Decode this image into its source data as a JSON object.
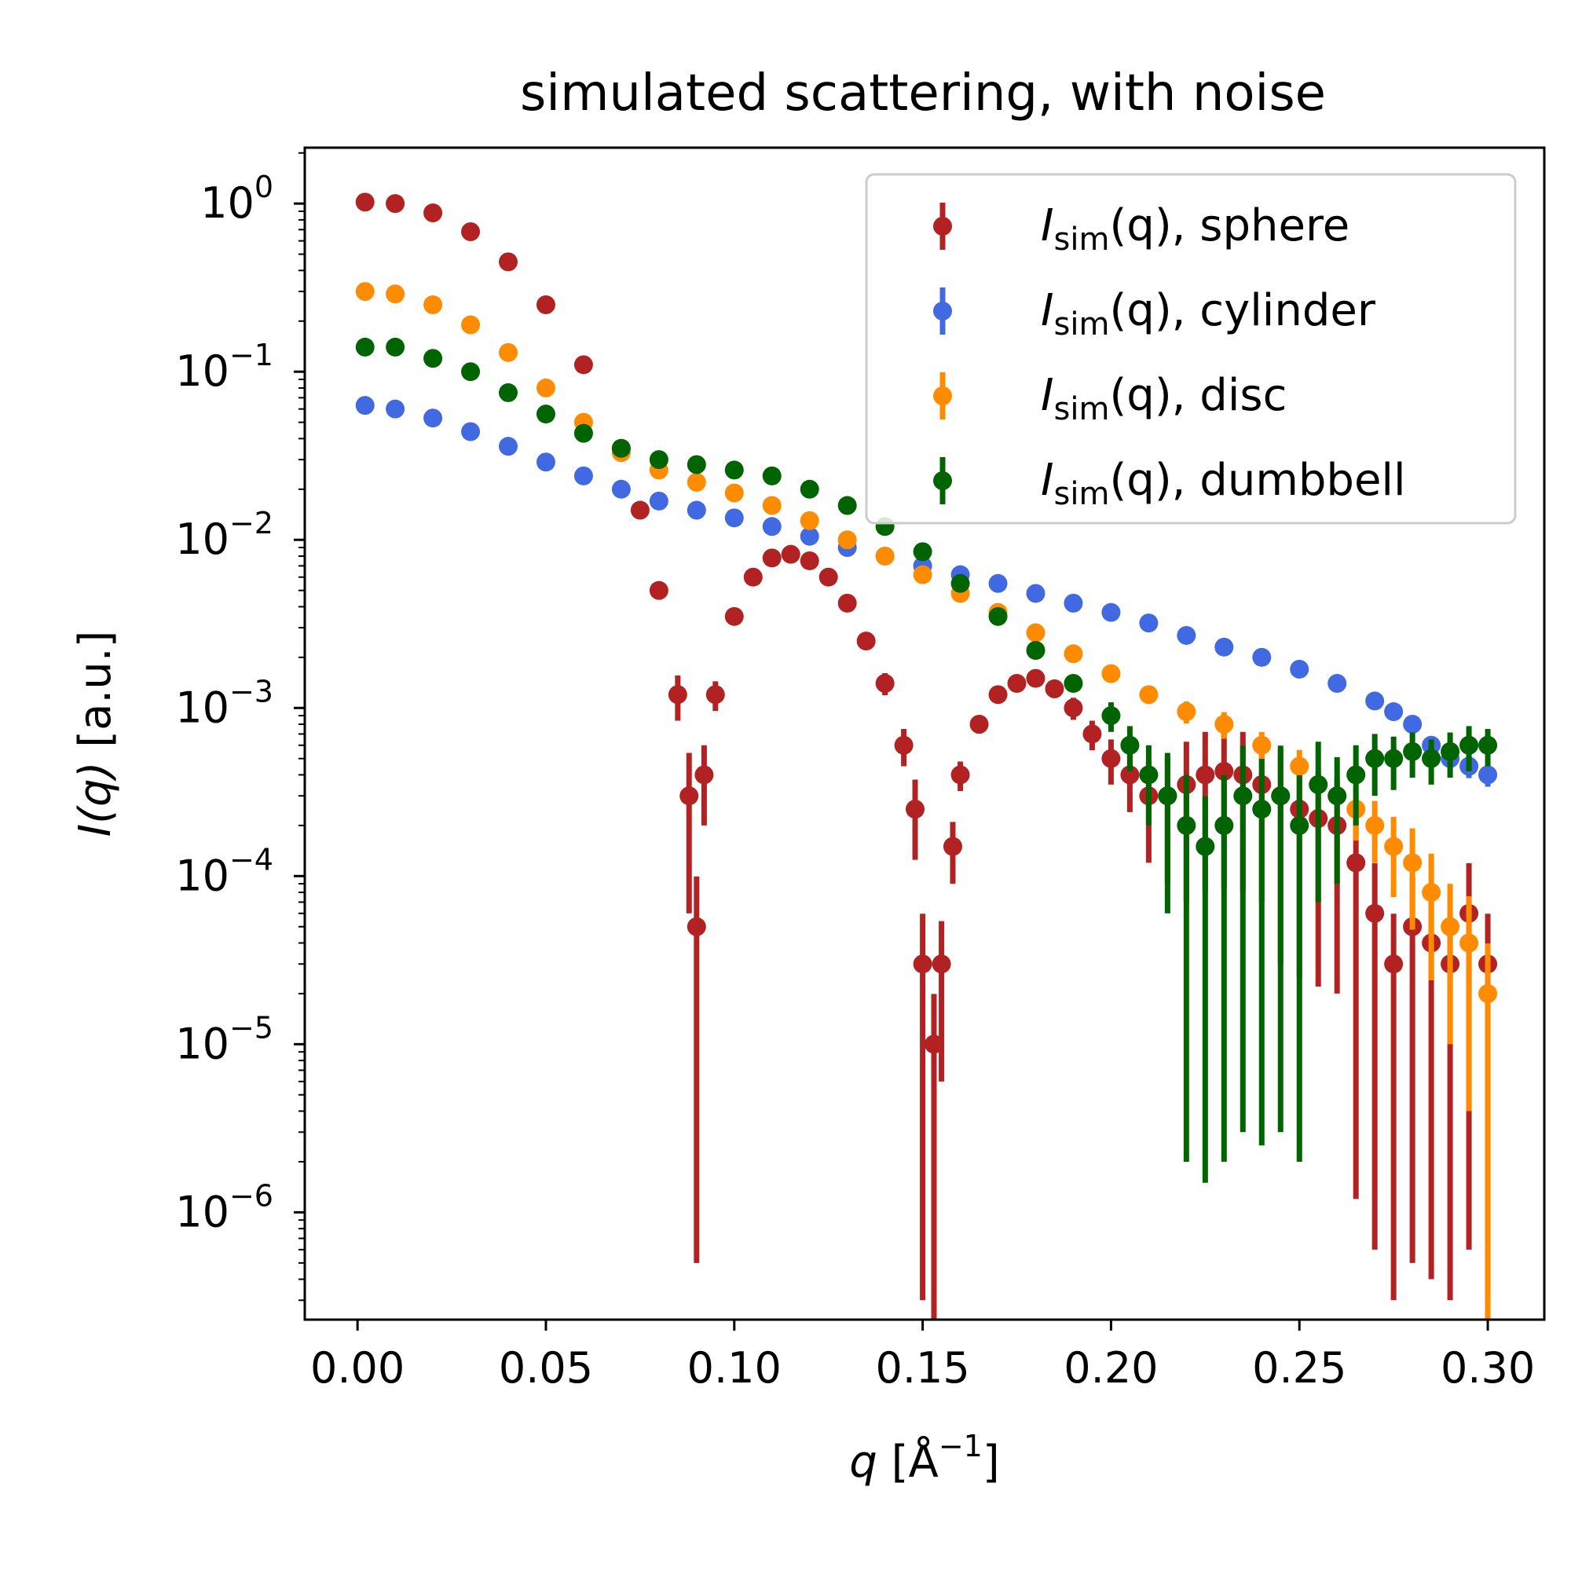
{
  "chart_data": {
    "type": "scatter",
    "title": "simulated scattering, with noise",
    "xlabel": {
      "main": "q",
      "bracket_open": " [Å",
      "exponent": "−1",
      "bracket_close": "]"
    },
    "ylabel": {
      "main": "I(q)",
      "rest": " [a.u.]"
    },
    "x_ticks": [
      "0.00",
      "0.05",
      "0.10",
      "0.15",
      "0.20",
      "0.25",
      "0.30"
    ],
    "x_tick_values": [
      0.0,
      0.05,
      0.1,
      0.15,
      0.2,
      0.25,
      0.3
    ],
    "y_ticks": [
      {
        "base": "10",
        "exp": "0"
      },
      {
        "base": "10",
        "exp": "−1"
      },
      {
        "base": "10",
        "exp": "−2"
      },
      {
        "base": "10",
        "exp": "−3"
      },
      {
        "base": "10",
        "exp": "−4"
      },
      {
        "base": "10",
        "exp": "−5"
      },
      {
        "base": "10",
        "exp": "−6"
      }
    ],
    "y_tick_exponents": [
      0,
      -1,
      -2,
      -3,
      -4,
      -5,
      -6
    ],
    "xlim": [
      -0.014,
      0.315
    ],
    "ylim": [
      2.3e-07,
      2.15
    ],
    "yscale": "log",
    "grid": false,
    "legend_position": "top-right",
    "series": [
      {
        "name": "sphere",
        "legend": {
          "sym": "I",
          "sub": "sim",
          "rest": "(q), sphere"
        },
        "color": "#b22222",
        "x": [
          0.002,
          0.01,
          0.02,
          0.03,
          0.04,
          0.05,
          0.06,
          0.07,
          0.075,
          0.08,
          0.085,
          0.088,
          0.09,
          0.092,
          0.095,
          0.1,
          0.105,
          0.11,
          0.115,
          0.12,
          0.125,
          0.13,
          0.135,
          0.14,
          0.145,
          0.148,
          0.15,
          0.153,
          0.155,
          0.158,
          0.16,
          0.165,
          0.17,
          0.175,
          0.18,
          0.185,
          0.19,
          0.195,
          0.2,
          0.205,
          0.21,
          0.215,
          0.22,
          0.225,
          0.23,
          0.235,
          0.24,
          0.245,
          0.25,
          0.255,
          0.26,
          0.265,
          0.27,
          0.275,
          0.28,
          0.285,
          0.29,
          0.295,
          0.3
        ],
        "y": [
          1.02,
          1.0,
          0.88,
          0.68,
          0.45,
          0.25,
          0.11,
          0.035,
          0.015,
          0.005,
          0.0012,
          0.0003,
          5e-05,
          0.0004,
          0.0012,
          0.0035,
          0.006,
          0.0078,
          0.0082,
          0.0075,
          0.006,
          0.0042,
          0.0025,
          0.0014,
          0.0006,
          0.00025,
          3e-05,
          1e-05,
          3e-05,
          0.00015,
          0.0004,
          0.0008,
          0.0012,
          0.0014,
          0.0015,
          0.0013,
          0.001,
          0.0007,
          0.0005,
          0.0004,
          0.0003,
          0.0003,
          0.00035,
          0.0004,
          0.00042,
          0.0004,
          0.00035,
          0.0003,
          0.00025,
          0.00022,
          0.0002,
          0.00012,
          6e-05,
          3e-05,
          5e-05,
          4e-05,
          3e-05,
          6e-05,
          3e-05
        ],
        "yerr_frac": [
          0.02,
          0.02,
          0.02,
          0.02,
          0.02,
          0.02,
          0.03,
          0.05,
          0.08,
          0.12,
          0.3,
          0.8,
          0.99,
          0.5,
          0.2,
          0.08,
          0.05,
          0.05,
          0.05,
          0.05,
          0.06,
          0.08,
          0.1,
          0.15,
          0.25,
          0.5,
          0.99,
          0.99,
          0.8,
          0.4,
          0.2,
          0.12,
          0.1,
          0.1,
          0.1,
          0.12,
          0.15,
          0.2,
          0.3,
          0.4,
          0.6,
          0.7,
          0.8,
          0.8,
          0.8,
          0.8,
          0.8,
          0.9,
          0.9,
          0.9,
          0.9,
          0.99,
          0.99,
          0.99,
          0.99,
          0.99,
          0.99,
          0.99,
          0.99
        ]
      },
      {
        "name": "cylinder",
        "legend": {
          "sym": "I",
          "sub": "sim",
          "rest": "(q), cylinder"
        },
        "color": "#4169e1",
        "x": [
          0.002,
          0.01,
          0.02,
          0.03,
          0.04,
          0.05,
          0.06,
          0.07,
          0.08,
          0.09,
          0.1,
          0.11,
          0.12,
          0.13,
          0.14,
          0.15,
          0.16,
          0.17,
          0.18,
          0.19,
          0.2,
          0.21,
          0.22,
          0.23,
          0.24,
          0.25,
          0.26,
          0.27,
          0.275,
          0.28,
          0.285,
          0.29,
          0.295,
          0.3
        ],
        "y": [
          0.063,
          0.06,
          0.053,
          0.044,
          0.036,
          0.029,
          0.024,
          0.02,
          0.017,
          0.015,
          0.0135,
          0.012,
          0.0105,
          0.009,
          0.008,
          0.007,
          0.0062,
          0.0055,
          0.0048,
          0.0042,
          0.0037,
          0.0032,
          0.0027,
          0.0023,
          0.002,
          0.0017,
          0.0014,
          0.0011,
          0.00095,
          0.0008,
          0.0006,
          0.0005,
          0.00045,
          0.0004
        ],
        "yerr_frac": [
          0.03,
          0.03,
          0.03,
          0.03,
          0.03,
          0.03,
          0.03,
          0.03,
          0.03,
          0.03,
          0.03,
          0.03,
          0.03,
          0.03,
          0.03,
          0.03,
          0.03,
          0.04,
          0.04,
          0.04,
          0.04,
          0.05,
          0.05,
          0.05,
          0.06,
          0.06,
          0.07,
          0.08,
          0.1,
          0.1,
          0.12,
          0.15,
          0.15,
          0.15
        ]
      },
      {
        "name": "disc",
        "legend": {
          "sym": "I",
          "sub": "sim",
          "rest": "(q), disc"
        },
        "color": "#ff8c00",
        "x": [
          0.002,
          0.01,
          0.02,
          0.03,
          0.04,
          0.05,
          0.06,
          0.07,
          0.08,
          0.09,
          0.1,
          0.11,
          0.12,
          0.13,
          0.14,
          0.15,
          0.16,
          0.17,
          0.18,
          0.19,
          0.2,
          0.21,
          0.22,
          0.23,
          0.24,
          0.25,
          0.26,
          0.265,
          0.27,
          0.275,
          0.28,
          0.285,
          0.29,
          0.295,
          0.3
        ],
        "y": [
          0.3,
          0.29,
          0.25,
          0.19,
          0.13,
          0.08,
          0.05,
          0.033,
          0.026,
          0.022,
          0.019,
          0.016,
          0.013,
          0.01,
          0.008,
          0.0062,
          0.0048,
          0.0037,
          0.0028,
          0.0021,
          0.0016,
          0.0012,
          0.00095,
          0.0008,
          0.0006,
          0.00045,
          0.0003,
          0.00025,
          0.0002,
          0.00015,
          0.00012,
          8e-05,
          5e-05,
          4e-05,
          2e-05
        ],
        "yerr_frac": [
          0.02,
          0.02,
          0.02,
          0.02,
          0.02,
          0.02,
          0.02,
          0.03,
          0.03,
          0.03,
          0.03,
          0.03,
          0.03,
          0.04,
          0.04,
          0.05,
          0.05,
          0.06,
          0.07,
          0.08,
          0.1,
          0.12,
          0.15,
          0.18,
          0.2,
          0.25,
          0.3,
          0.35,
          0.4,
          0.5,
          0.6,
          0.7,
          0.8,
          0.9,
          0.99
        ]
      },
      {
        "name": "dumbbell",
        "legend": {
          "sym": "I",
          "sub": "sim",
          "rest": "(q), dumbbell"
        },
        "color": "#006400",
        "x": [
          0.002,
          0.01,
          0.02,
          0.03,
          0.04,
          0.05,
          0.06,
          0.07,
          0.08,
          0.09,
          0.1,
          0.11,
          0.12,
          0.13,
          0.14,
          0.15,
          0.16,
          0.17,
          0.18,
          0.19,
          0.2,
          0.205,
          0.21,
          0.215,
          0.22,
          0.225,
          0.23,
          0.235,
          0.24,
          0.245,
          0.25,
          0.255,
          0.26,
          0.265,
          0.27,
          0.275,
          0.28,
          0.285,
          0.29,
          0.295,
          0.3
        ],
        "y": [
          0.14,
          0.14,
          0.12,
          0.1,
          0.075,
          0.056,
          0.043,
          0.035,
          0.03,
          0.028,
          0.026,
          0.024,
          0.02,
          0.016,
          0.012,
          0.0085,
          0.0055,
          0.0035,
          0.0022,
          0.0014,
          0.0009,
          0.0006,
          0.0004,
          0.0003,
          0.0002,
          0.00015,
          0.0002,
          0.0003,
          0.00025,
          0.0003,
          0.0002,
          0.00035,
          0.0003,
          0.0004,
          0.0005,
          0.0005,
          0.00055,
          0.0005,
          0.00055,
          0.0006,
          0.0006
        ],
        "yerr_frac": [
          0.02,
          0.02,
          0.02,
          0.02,
          0.02,
          0.02,
          0.02,
          0.02,
          0.02,
          0.02,
          0.02,
          0.02,
          0.03,
          0.03,
          0.03,
          0.04,
          0.05,
          0.06,
          0.08,
          0.1,
          0.2,
          0.3,
          0.5,
          0.8,
          0.99,
          0.99,
          0.99,
          0.99,
          0.99,
          0.99,
          0.99,
          0.8,
          0.7,
          0.5,
          0.4,
          0.35,
          0.3,
          0.3,
          0.3,
          0.3,
          0.25
        ]
      }
    ]
  }
}
